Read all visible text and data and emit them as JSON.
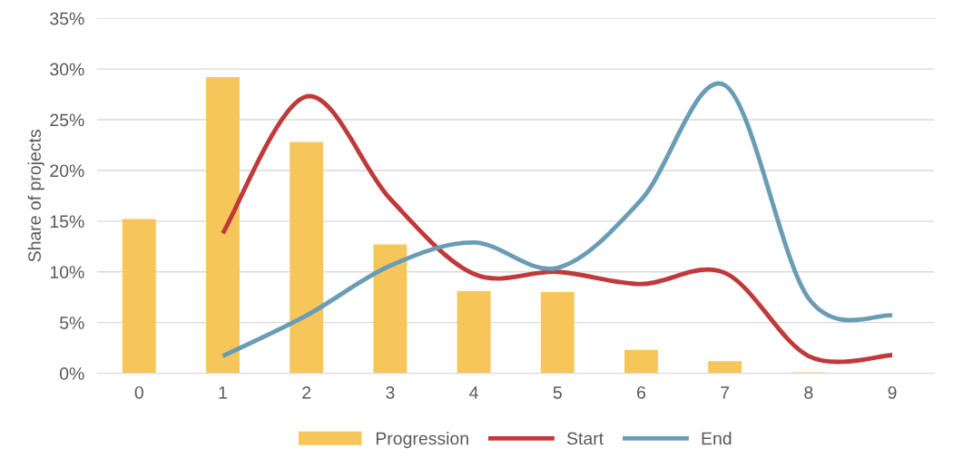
{
  "chart_data": {
    "type": "bar",
    "ylabel": "Share of projects",
    "categories": [
      "0",
      "1",
      "2",
      "3",
      "4",
      "5",
      "6",
      "7",
      "8",
      "9"
    ],
    "series": [
      {
        "name": "Progression",
        "color": "#f7c65a",
        "values": [
          15.2,
          29.2,
          22.8,
          12.7,
          8.1,
          8.0,
          2.3,
          1.2,
          0.1,
          null
        ]
      },
      {
        "name": "Start",
        "type": "line",
        "color": "#c0393b",
        "values": [
          null,
          13.8,
          27.3,
          17.2,
          9.8,
          10.0,
          8.8,
          9.9,
          1.7,
          1.8
        ]
      },
      {
        "name": "End",
        "type": "line",
        "color": "#6a9db5",
        "values": [
          null,
          1.7,
          5.7,
          10.6,
          12.9,
          10.4,
          17.1,
          28.4,
          7.4,
          5.7
        ]
      }
    ],
    "ylim": [
      0,
      35
    ],
    "yticks": [
      {
        "value": 0,
        "label": "0%"
      },
      {
        "value": 5,
        "label": "5%"
      },
      {
        "value": 10,
        "label": "10%"
      },
      {
        "value": 15,
        "label": "15%"
      },
      {
        "value": 20,
        "label": "20%"
      },
      {
        "value": 25,
        "label": "25%"
      },
      {
        "value": 30,
        "label": "30%"
      },
      {
        "value": 35,
        "label": "35%"
      }
    ],
    "grid": "y",
    "legend": "bottom"
  }
}
